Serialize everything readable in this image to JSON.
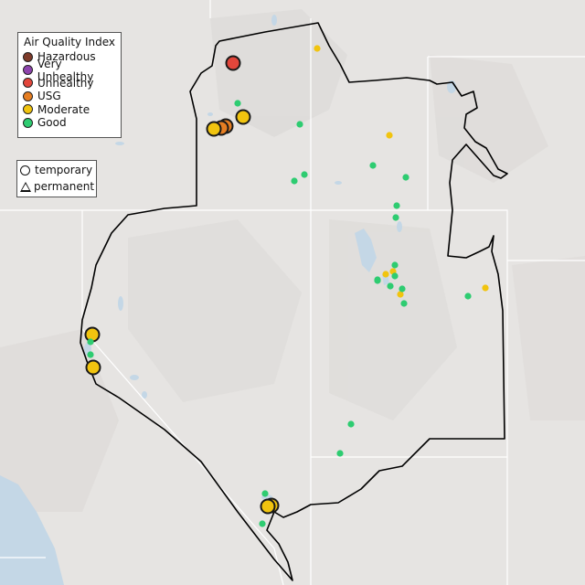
{
  "legend": {
    "title": "Air Quality Index",
    "categories": [
      {
        "label": "Hazardous",
        "color": "#7e3b2a"
      },
      {
        "label": "Very Unhealthy",
        "color": "#8e44ad"
      },
      {
        "label": "Unhealthy",
        "color": "#e2463b"
      },
      {
        "label": "USG",
        "color": "#e67e22"
      },
      {
        "label": "Moderate",
        "color": "#f1c40f"
      },
      {
        "label": "Good",
        "color": "#2ecc71"
      }
    ]
  },
  "type_legend": {
    "temporary": "temporary",
    "permanent": "permanent"
  },
  "colors": {
    "land": "#e6e4e2",
    "water": "#c4d7e6",
    "boundary": "#000000",
    "state_line": "#ffffff"
  },
  "monitors": [
    {
      "category": "Unhealthy",
      "type": "temporary",
      "size": "large"
    },
    {
      "category": "USG",
      "type": "temporary",
      "size": "large"
    },
    {
      "category": "USG",
      "type": "temporary",
      "size": "large"
    },
    {
      "category": "Moderate",
      "type": "temporary",
      "size": "large"
    },
    {
      "category": "Moderate",
      "type": "temporary",
      "size": "large"
    },
    {
      "category": "Moderate",
      "type": "temporary",
      "size": "large"
    },
    {
      "category": "Moderate",
      "type": "temporary",
      "size": "large"
    },
    {
      "category": "Moderate",
      "type": "temporary",
      "size": "large"
    },
    {
      "category": "Moderate",
      "type": "temporary",
      "size": "large"
    },
    {
      "category": "Moderate",
      "type": "permanent",
      "size": "small"
    },
    {
      "category": "Moderate",
      "type": "permanent",
      "size": "small"
    },
    {
      "category": "Moderate",
      "type": "permanent",
      "size": "small"
    },
    {
      "category": "Moderate",
      "type": "permanent",
      "size": "small"
    },
    {
      "category": "Moderate",
      "type": "permanent",
      "size": "small"
    },
    {
      "category": "Moderate",
      "type": "permanent",
      "size": "small"
    },
    {
      "category": "Good",
      "type": "permanent",
      "size": "small"
    },
    {
      "category": "Good",
      "type": "permanent",
      "size": "small"
    },
    {
      "category": "Good",
      "type": "permanent",
      "size": "small"
    },
    {
      "category": "Good",
      "type": "permanent",
      "size": "small"
    },
    {
      "category": "Good",
      "type": "permanent",
      "size": "small"
    },
    {
      "category": "Good",
      "type": "permanent",
      "size": "small"
    },
    {
      "category": "Good",
      "type": "permanent",
      "size": "small"
    },
    {
      "category": "Good",
      "type": "permanent",
      "size": "small"
    },
    {
      "category": "Good",
      "type": "permanent",
      "size": "small"
    },
    {
      "category": "Good",
      "type": "permanent",
      "size": "small"
    },
    {
      "category": "Good",
      "type": "permanent",
      "size": "small"
    },
    {
      "category": "Good",
      "type": "permanent",
      "size": "small"
    },
    {
      "category": "Good",
      "type": "permanent",
      "size": "small"
    },
    {
      "category": "Good",
      "type": "permanent",
      "size": "small"
    },
    {
      "category": "Good",
      "type": "permanent",
      "size": "small"
    },
    {
      "category": "Good",
      "type": "permanent",
      "size": "small"
    },
    {
      "category": "Good",
      "type": "permanent",
      "size": "small"
    },
    {
      "category": "Good",
      "type": "permanent",
      "size": "small"
    },
    {
      "category": "Good",
      "type": "permanent",
      "size": "small"
    },
    {
      "category": "Good",
      "type": "permanent",
      "size": "small"
    },
    {
      "category": "Good",
      "type": "permanent",
      "size": "small"
    },
    {
      "category": "Good",
      "type": "permanent",
      "size": "small"
    }
  ]
}
